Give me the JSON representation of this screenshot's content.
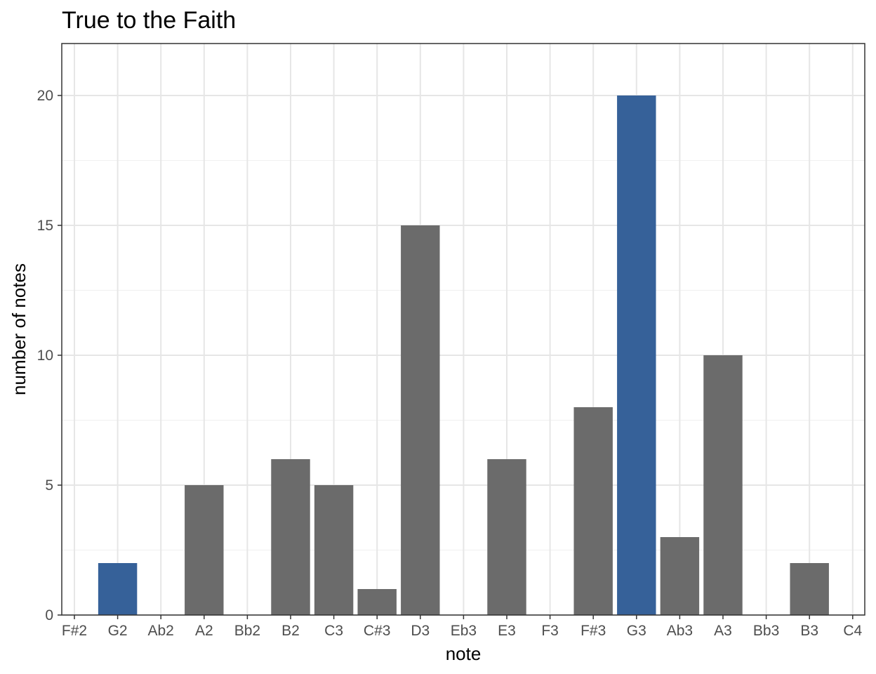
{
  "chart_data": {
    "type": "bar",
    "title": "True to the Faith",
    "xlabel": "note",
    "ylabel": "number of notes",
    "categories": [
      "F#2",
      "G2",
      "Ab2",
      "A2",
      "Bb2",
      "B2",
      "C3",
      "C#3",
      "D3",
      "Eb3",
      "E3",
      "F3",
      "F#3",
      "G3",
      "Ab3",
      "A3",
      "Bb3",
      "B3",
      "C4"
    ],
    "values": [
      0,
      2,
      0,
      5,
      0,
      6,
      5,
      1,
      15,
      0,
      6,
      0,
      8,
      20,
      3,
      10,
      0,
      2,
      0
    ],
    "highlighted": [
      "G2",
      "G3"
    ],
    "ylim": [
      0,
      22
    ],
    "yticks": [
      0,
      5,
      10,
      15,
      20
    ],
    "grid": true,
    "colors": {
      "default": "#6b6b6b",
      "highlight": "#366199"
    }
  }
}
